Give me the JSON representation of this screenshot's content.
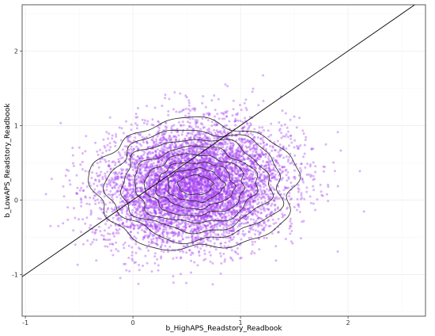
{
  "chart_data": {
    "type": "scatter",
    "title": "",
    "xlabel": "b_HighAPS_Readstory_Readbook",
    "ylabel": "b_LowAPS_Readstory_Readbook",
    "xlim": [
      -1.03,
      2.72
    ],
    "ylim": [
      -1.56,
      2.62
    ],
    "x_ticks": [
      -1,
      0,
      1,
      2
    ],
    "y_ticks": [
      -1,
      0,
      1,
      2
    ],
    "x_tick_labels": [
      "-1",
      "0",
      "1",
      "2"
    ],
    "y_tick_labels": [
      "-1",
      "0",
      "1",
      "2"
    ],
    "grid": true,
    "legend": "none",
    "point_color": "#a43cf0",
    "point_opacity": 0.38,
    "reference_line": {
      "type": "identity",
      "slope": 1,
      "intercept": 0,
      "color": "#000000"
    },
    "point_cloud": {
      "n_points": 6500,
      "x_center": 0.58,
      "y_center": 0.2,
      "x_sd": 0.42,
      "y_sd": 0.4,
      "correlation": 0.12
    },
    "density_contours": {
      "color": "#222222",
      "center_x": 0.58,
      "center_y": 0.2,
      "levels": [
        {
          "x_radius": 0.16,
          "y_radius": 0.13
        },
        {
          "x_radius": 0.26,
          "y_radius": 0.22
        },
        {
          "x_radius": 0.36,
          "y_radius": 0.31
        },
        {
          "x_radius": 0.46,
          "y_radius": 0.41
        },
        {
          "x_radius": 0.57,
          "y_radius": 0.51
        },
        {
          "x_radius": 0.69,
          "y_radius": 0.62
        },
        {
          "x_radius": 0.81,
          "y_radius": 0.74
        },
        {
          "x_radius": 0.95,
          "y_radius": 0.87
        }
      ]
    }
  }
}
